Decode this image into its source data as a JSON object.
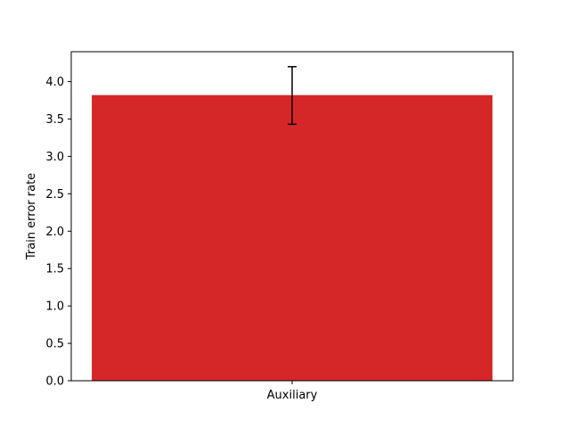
{
  "chart_data": {
    "type": "bar",
    "categories": [
      "Auxiliary"
    ],
    "values": [
      3.82
    ],
    "error": [
      {
        "low": 3.43,
        "high": 4.2
      }
    ],
    "title": "",
    "xlabel": "",
    "ylabel": "Train error rate",
    "ylim": [
      0,
      4.4
    ],
    "yticks": [
      0.0,
      0.5,
      1.0,
      1.5,
      2.0,
      2.5,
      3.0,
      3.5,
      4.0
    ],
    "ytick_labels": [
      "0.0",
      "0.5",
      "1.0",
      "1.5",
      "2.0",
      "2.5",
      "3.0",
      "3.5",
      "4.0"
    ],
    "grid": false,
    "bar_color": "#d62728",
    "errorbar_color": "#000000"
  }
}
